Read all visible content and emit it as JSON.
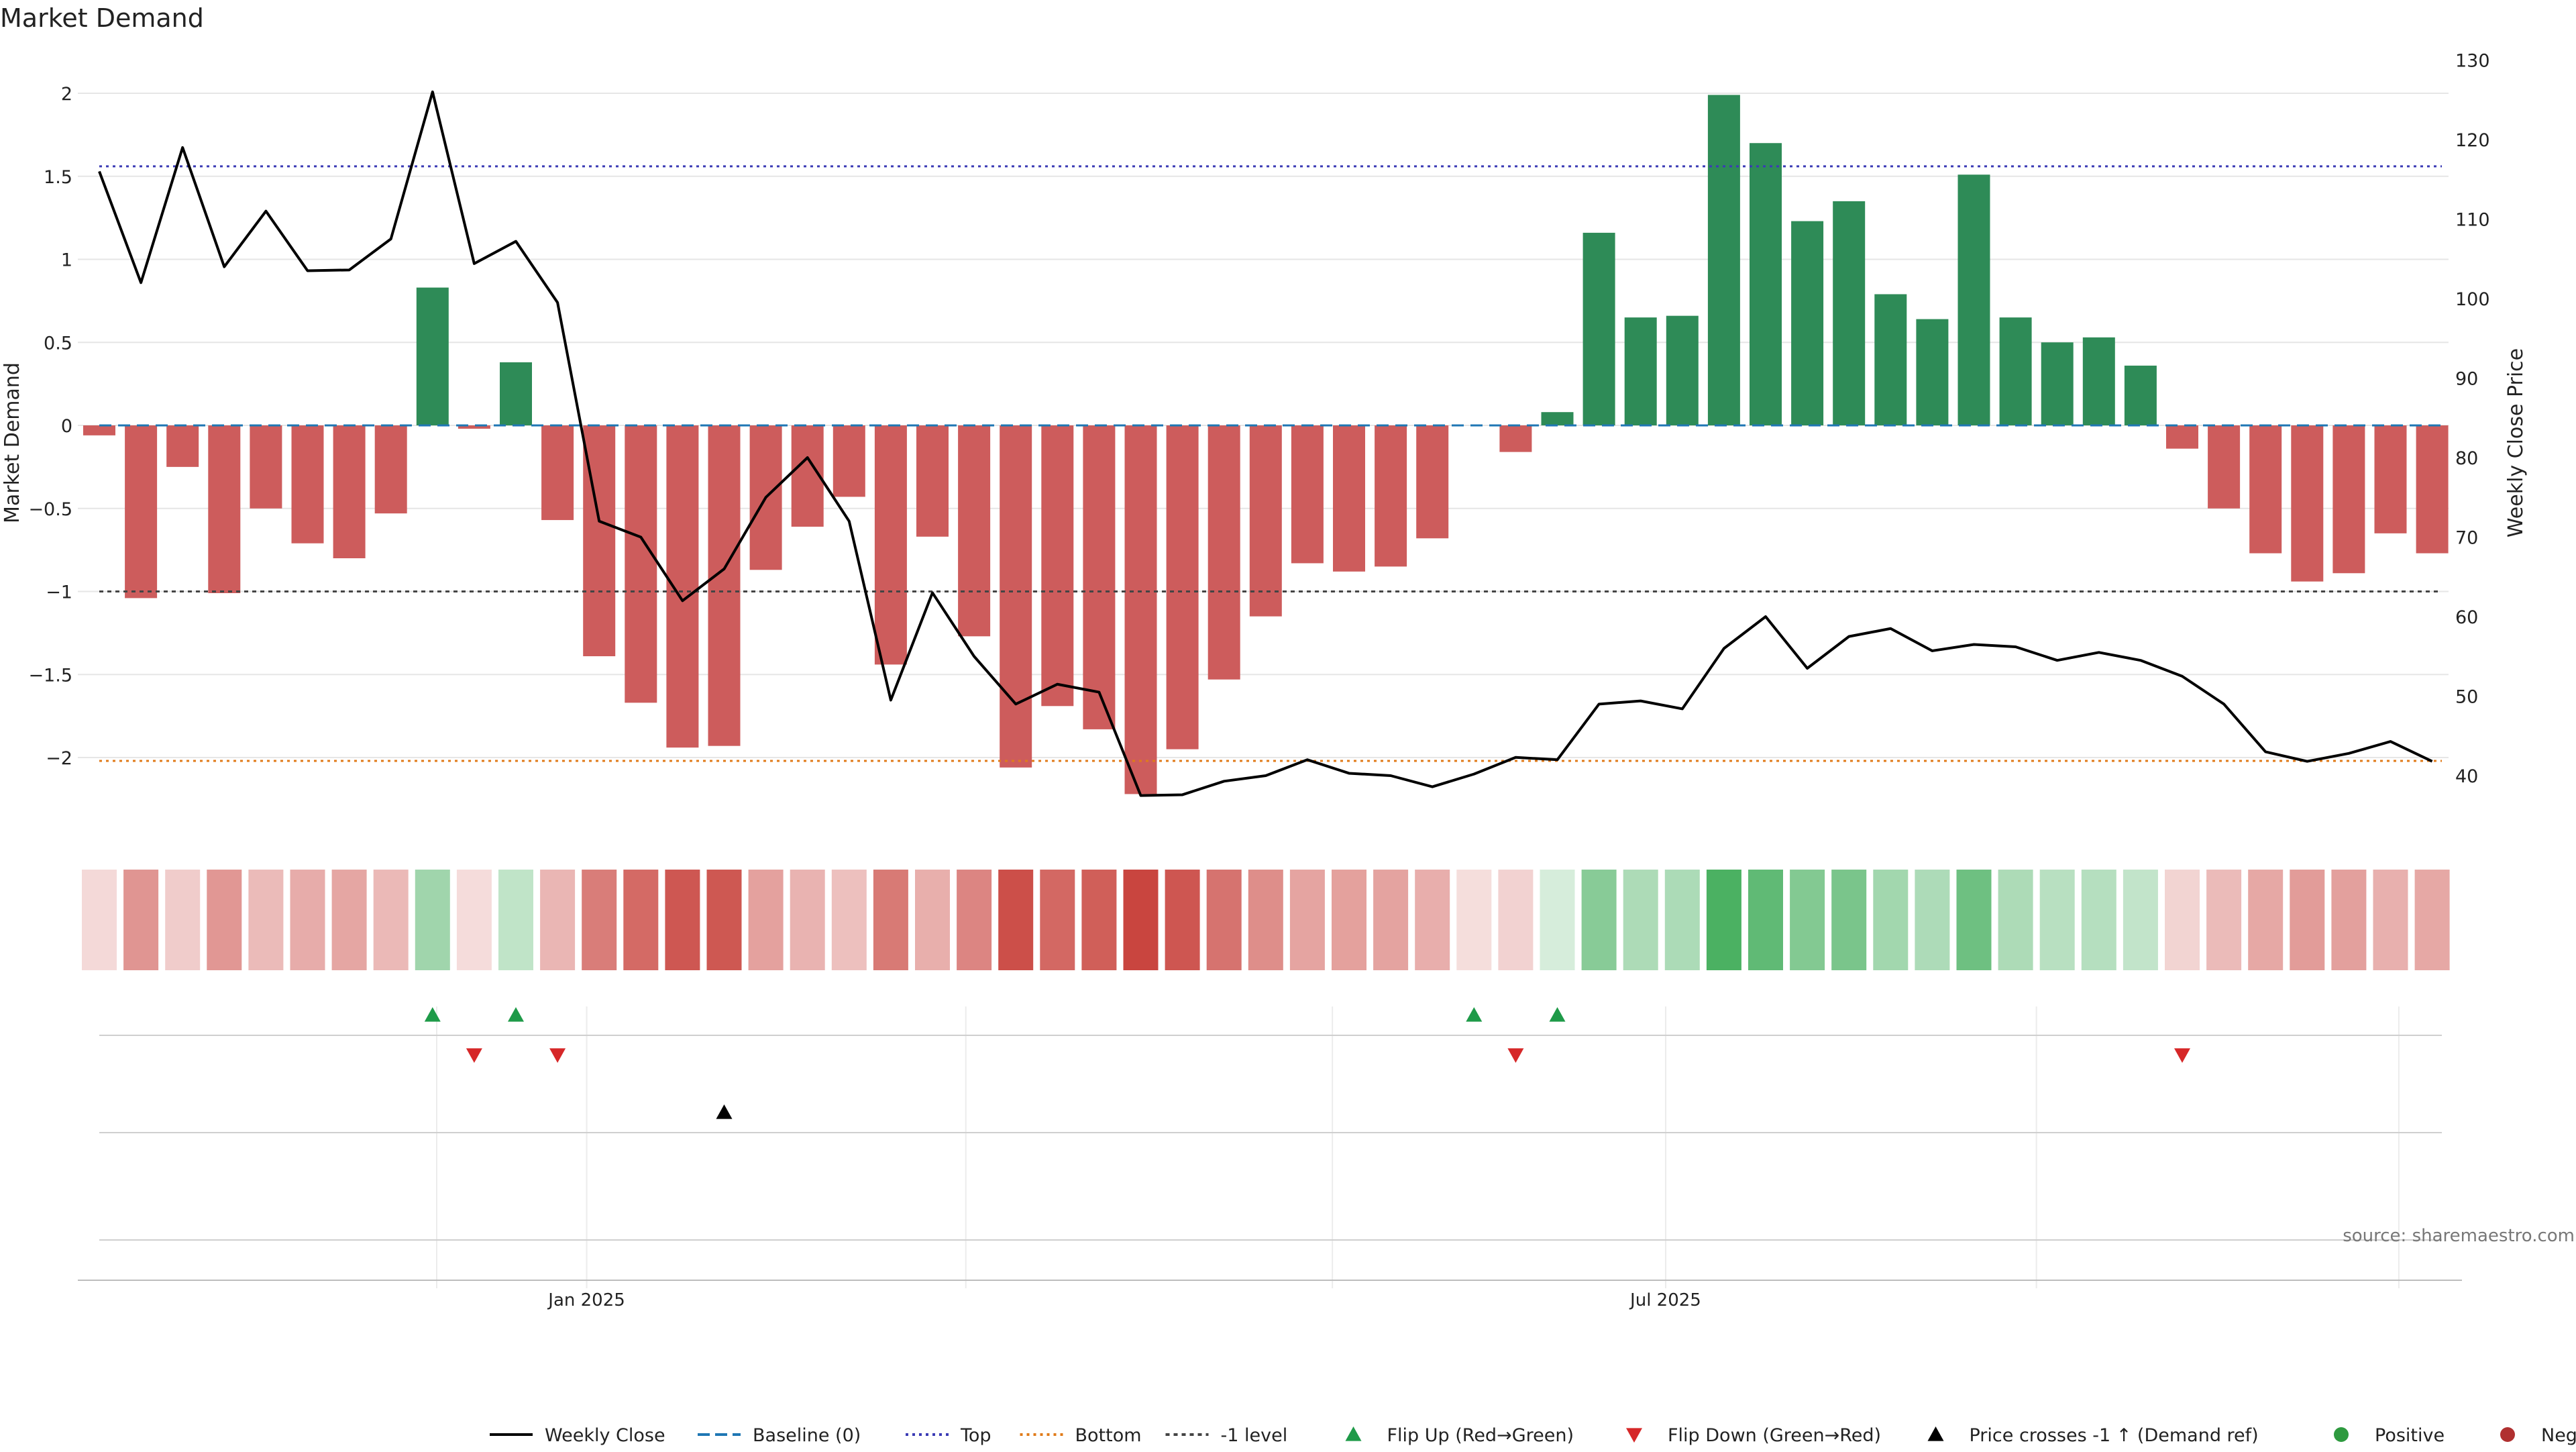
{
  "colors": {
    "positive": "#2e8b57",
    "negative": "#cd5c5c",
    "price_line": "#000000",
    "baseline": "#1f77b4",
    "top_line": "#3b3bb5",
    "bottom_line": "#e07b1a",
    "minus1_line": "#444444",
    "flip_up": "#1e9a48",
    "flip_down": "#d62728",
    "cross_marker": "#000000",
    "grid": "#e6e6e6",
    "text": "#222222",
    "source_text": "#777777"
  },
  "chart_data": {
    "type": "bar",
    "title": "Market Demand",
    "ylabel_left": "Market Demand",
    "ylabel_right": "Weekly Close Price",
    "source": "source: sharemaestro.com",
    "left_axis": {
      "ylim": [
        -2.5,
        2.2
      ],
      "ticks": [
        2,
        1.5,
        1,
        0.5,
        0,
        -0.5,
        -1,
        -1.5,
        -2
      ],
      "tick_labels": [
        "2",
        "1.5",
        "1",
        "0.5",
        "0",
        "−0.5",
        "−1",
        "−1.5",
        "−2"
      ]
    },
    "right_axis": {
      "ylim": [
        35,
        130
      ],
      "ticks": [
        130,
        120,
        110,
        100,
        90,
        80,
        70,
        60,
        50,
        40
      ],
      "tick_labels": [
        "130",
        "120",
        "110",
        "100",
        "90",
        "80",
        "70",
        "60",
        "50",
        "40"
      ]
    },
    "x_tick_labels": [
      {
        "label": "Jan 2025",
        "week_index": 11.7
      },
      {
        "label": "Jul 2025",
        "week_index": 37.6
      }
    ],
    "reference_lines": {
      "baseline": 0,
      "top": 1.56,
      "bottom": -2.02,
      "minus1": -1
    },
    "demand": [
      -0.06,
      -1.04,
      -0.25,
      -1.01,
      -0.5,
      -0.71,
      -0.8,
      -0.53,
      0.83,
      -0.02,
      0.38,
      -0.57,
      -1.39,
      -1.67,
      -1.94,
      -1.93,
      -0.87,
      -0.61,
      -0.43,
      -1.44,
      -0.67,
      -1.27,
      -2.06,
      -1.69,
      -1.83,
      -2.22,
      -1.95,
      -1.53,
      -1.15,
      -0.83,
      -0.88,
      -0.85,
      -0.68,
      0.0,
      -0.16,
      0.08,
      1.16,
      0.65,
      0.66,
      1.99,
      1.7,
      1.23,
      1.35,
      0.79,
      0.64,
      1.51,
      0.65,
      0.5,
      0.53,
      0.36,
      -0.14,
      -0.5,
      -0.77,
      -0.94,
      -0.89,
      -0.65,
      -0.77
    ],
    "weekly_close": [
      116,
      102,
      119,
      104,
      111,
      103.5,
      103.6,
      107.5,
      126,
      104.4,
      107.2,
      99.5,
      72,
      70,
      62,
      66,
      75,
      80,
      72,
      49.5,
      63,
      55,
      49,
      51.5,
      50.5,
      37.5,
      37.6,
      39.3,
      40,
      42,
      40.3,
      40,
      38.6,
      40.2,
      42.3,
      42,
      49,
      49.4,
      48.4,
      56,
      60,
      53.5,
      57.5,
      58.5,
      55.7,
      56.5,
      56.2,
      54.5,
      55.5,
      54.5,
      52.5,
      49,
      43,
      41.8,
      42.8,
      44.3,
      41.8
    ],
    "flip_up_weeks": [
      8,
      10,
      33,
      35
    ],
    "flip_down_weeks": [
      9,
      11,
      34,
      50
    ],
    "cross_weeks": [
      15
    ],
    "legend": [
      "Weekly Close",
      "Baseline (0)",
      "Top",
      "Bottom",
      "-1 level",
      "Flip Up (Red→Green)",
      "Flip Down (Green→Red)",
      "Price crosses -1 ↑ (Demand ref)",
      "Positive",
      "Negative"
    ],
    "legend_placement": "bottom"
  }
}
